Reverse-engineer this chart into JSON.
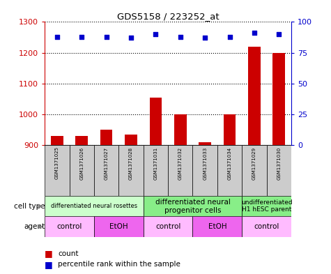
{
  "title": "GDS5158 / 223252_at",
  "samples": [
    "GSM1371025",
    "GSM1371026",
    "GSM1371027",
    "GSM1371028",
    "GSM1371031",
    "GSM1371032",
    "GSM1371033",
    "GSM1371034",
    "GSM1371029",
    "GSM1371030"
  ],
  "counts": [
    930,
    930,
    950,
    935,
    1055,
    1000,
    910,
    1000,
    1220,
    1200
  ],
  "percentile_ranks": [
    88,
    88,
    88,
    87,
    90,
    88,
    87,
    88,
    91,
    90
  ],
  "ylim_left": [
    900,
    1300
  ],
  "ylim_right": [
    0,
    100
  ],
  "yticks_left": [
    900,
    1000,
    1100,
    1200,
    1300
  ],
  "yticks_right": [
    0,
    25,
    50,
    75,
    100
  ],
  "cell_type_groups": [
    {
      "label": "differentiated neural rosettes",
      "start": 0,
      "end": 4,
      "color": "#ccffcc",
      "fontsize": 6
    },
    {
      "label": "differentiated neural\nprogenitor cells",
      "start": 4,
      "end": 8,
      "color": "#88ee88",
      "fontsize": 7.5
    },
    {
      "label": "undifferentiated\nH1 hESC parent",
      "start": 8,
      "end": 10,
      "color": "#88ee88",
      "fontsize": 6.5
    }
  ],
  "agent_groups": [
    {
      "label": "control",
      "start": 0,
      "end": 2,
      "color": "#ffbbff"
    },
    {
      "label": "EtOH",
      "start": 2,
      "end": 4,
      "color": "#ee66ee"
    },
    {
      "label": "control",
      "start": 4,
      "end": 6,
      "color": "#ffbbff"
    },
    {
      "label": "EtOH",
      "start": 6,
      "end": 8,
      "color": "#ee66ee"
    },
    {
      "label": "control",
      "start": 8,
      "end": 10,
      "color": "#ffbbff"
    }
  ],
  "bar_color": "#cc0000",
  "dot_color": "#0000cc",
  "axis_left_color": "#cc0000",
  "axis_right_color": "#0000cc",
  "sample_box_color": "#cccccc"
}
